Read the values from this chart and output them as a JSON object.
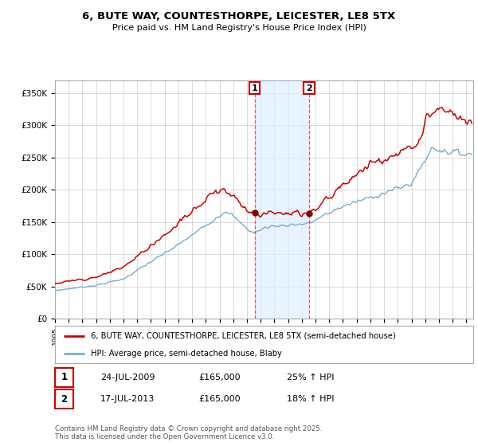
{
  "title_line1": "6, BUTE WAY, COUNTESTHORPE, LEICESTER, LE8 5TX",
  "title_line2": "Price paid vs. HM Land Registry's House Price Index (HPI)",
  "ylabel_ticks": [
    "£0",
    "£50K",
    "£100K",
    "£150K",
    "£200K",
    "£250K",
    "£300K",
    "£350K"
  ],
  "ytick_values": [
    0,
    50000,
    100000,
    150000,
    200000,
    250000,
    300000,
    350000
  ],
  "ylim": [
    0,
    370000
  ],
  "xlim_start": 1995.0,
  "xlim_end": 2025.5,
  "purchase1_date": "24-JUL-2009",
  "purchase1_price": 165000,
  "purchase1_pct": "25%",
  "purchase1_x": 2009.56,
  "purchase2_date": "17-JUL-2013",
  "purchase2_price": 165000,
  "purchase2_pct": "18%",
  "purchase2_x": 2013.54,
  "red_line_color": "#cc0000",
  "blue_line_color": "#7aaccc",
  "shading_color": "#ddeeff",
  "marker_box_color": "#cc0000",
  "dot_color": "#880000",
  "legend_line1": "6, BUTE WAY, COUNTESTHORPE, LEICESTER, LE8 5TX (semi-detached house)",
  "legend_line2": "HPI: Average price, semi-detached house, Blaby",
  "footer": "Contains HM Land Registry data © Crown copyright and database right 2025.\nThis data is licensed under the Open Government Licence v3.0.",
  "background_color": "#ffffff",
  "grid_color": "#cccccc"
}
